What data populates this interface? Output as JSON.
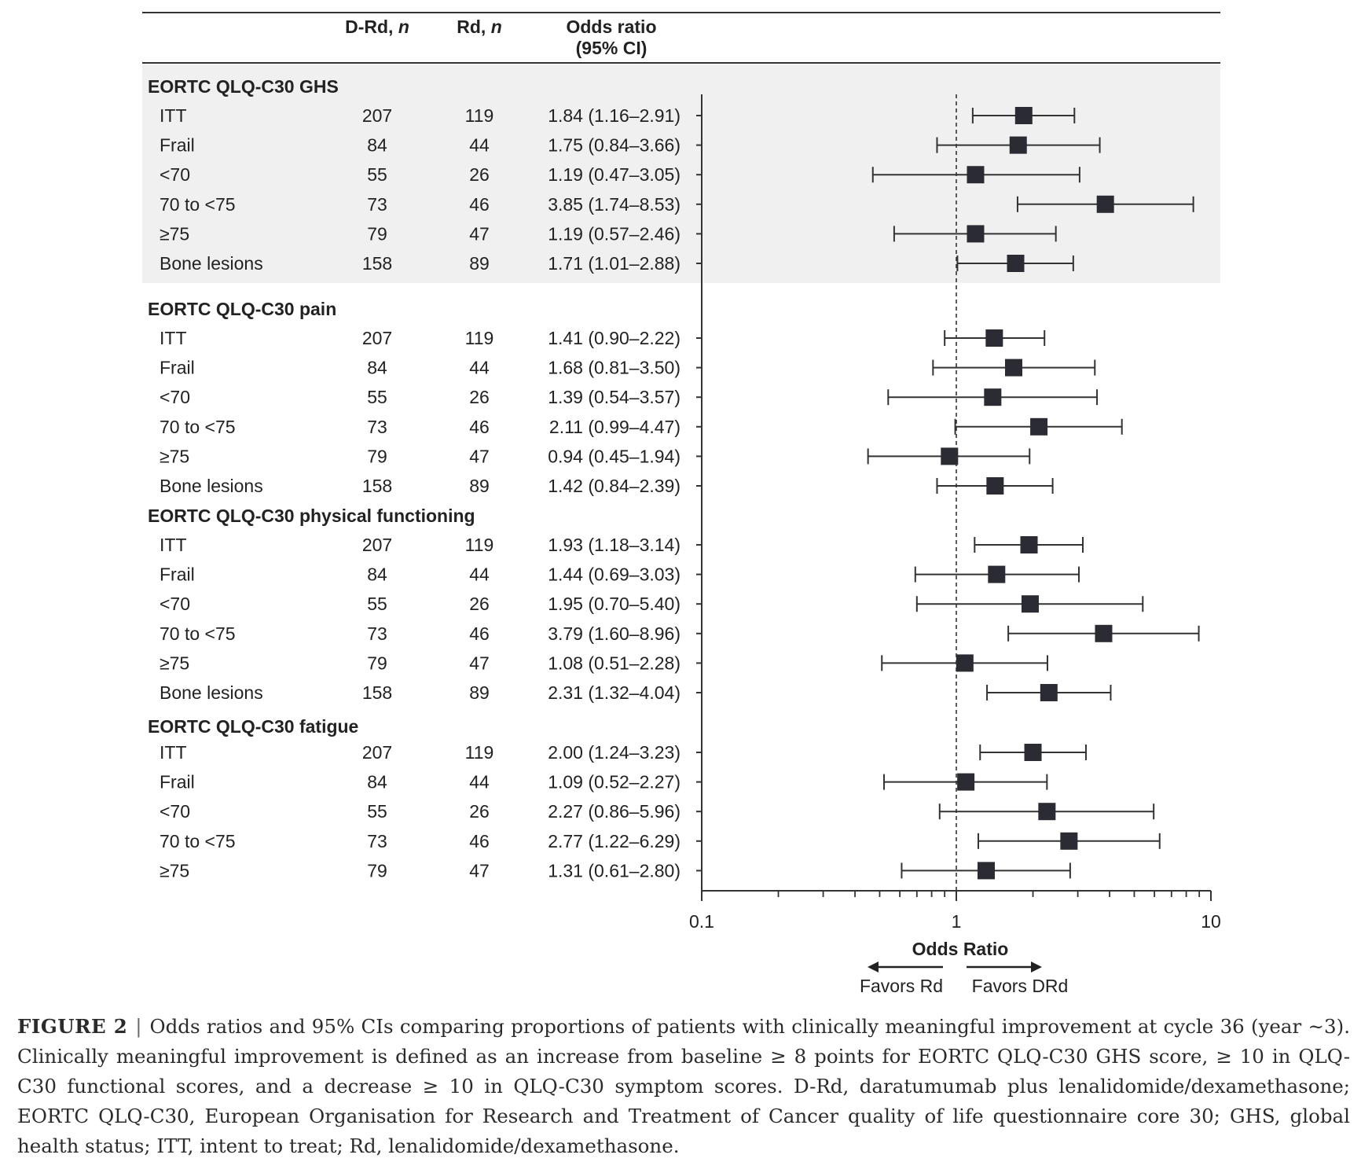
{
  "chart_data": {
    "type": "forest",
    "columns": {
      "drd": "D-Rd, ",
      "rd": "Rd, ",
      "n_symbol": "n",
      "or_line1": "Odds ratio",
      "or_line2": "(95% CI)"
    },
    "x_axis": {
      "label": "Odds Ratio",
      "scale": "log",
      "range": [
        0.1,
        10
      ],
      "tick_labels": [
        "0.1",
        "1",
        "10"
      ],
      "minor_ticks": [
        0.2,
        0.3,
        0.4,
        0.5,
        0.6,
        0.7,
        0.8,
        0.9,
        2,
        3,
        4,
        5,
        6,
        7,
        8,
        9
      ],
      "reference_line": 1
    },
    "favors": {
      "left": "Favors Rd",
      "right": "Favors DRd"
    },
    "groups": [
      {
        "title": "EORTC QLQ-C30 GHS",
        "shaded": true,
        "rows": [
          {
            "label": "ITT",
            "drd": "207",
            "rd": "119",
            "text": "1.84 (1.16–2.91)",
            "or": 1.84,
            "lo": 1.16,
            "hi": 2.91
          },
          {
            "label": "Frail",
            "drd": "84",
            "rd": "44",
            "text": "1.75 (0.84–3.66)",
            "or": 1.75,
            "lo": 0.84,
            "hi": 3.66
          },
          {
            "label": "<70",
            "drd": "55",
            "rd": "26",
            "text": "1.19 (0.47–3.05)",
            "or": 1.19,
            "lo": 0.47,
            "hi": 3.05
          },
          {
            "label": "70 to <75",
            "drd": "73",
            "rd": "46",
            "text": "3.85 (1.74–8.53)",
            "or": 3.85,
            "lo": 1.74,
            "hi": 8.53
          },
          {
            "label": "≥75",
            "drd": "79",
            "rd": "47",
            "text": "1.19 (0.57–2.46)",
            "or": 1.19,
            "lo": 0.57,
            "hi": 2.46
          },
          {
            "label": "Bone lesions",
            "drd": "158",
            "rd": "89",
            "text": "1.71 (1.01–2.88)",
            "or": 1.71,
            "lo": 1.01,
            "hi": 2.88
          }
        ]
      },
      {
        "title": "EORTC QLQ-C30 pain",
        "shaded": false,
        "rows": [
          {
            "label": "ITT",
            "drd": "207",
            "rd": "119",
            "text": "1.41 (0.90–2.22)",
            "or": 1.41,
            "lo": 0.9,
            "hi": 2.22
          },
          {
            "label": "Frail",
            "drd": "84",
            "rd": "44",
            "text": "1.68 (0.81–3.50)",
            "or": 1.68,
            "lo": 0.81,
            "hi": 3.5
          },
          {
            "label": "<70",
            "drd": "55",
            "rd": "26",
            "text": "1.39 (0.54–3.57)",
            "or": 1.39,
            "lo": 0.54,
            "hi": 3.57
          },
          {
            "label": "70 to <75",
            "drd": "73",
            "rd": "46",
            "text": "2.11 (0.99–4.47)",
            "or": 2.11,
            "lo": 0.99,
            "hi": 4.47
          },
          {
            "label": "≥75",
            "drd": "79",
            "rd": "47",
            "text": "0.94 (0.45–1.94)",
            "or": 0.94,
            "lo": 0.45,
            "hi": 1.94
          },
          {
            "label": "Bone lesions",
            "drd": "158",
            "rd": "89",
            "text": "1.42 (0.84–2.39)",
            "or": 1.42,
            "lo": 0.84,
            "hi": 2.39
          }
        ]
      },
      {
        "title": "EORTC QLQ-C30 physical functioning",
        "shaded": false,
        "rows": [
          {
            "label": "ITT",
            "drd": "207",
            "rd": "119",
            "text": "1.93 (1.18–3.14)",
            "or": 1.93,
            "lo": 1.18,
            "hi": 3.14
          },
          {
            "label": "Frail",
            "drd": "84",
            "rd": "44",
            "text": "1.44 (0.69–3.03)",
            "or": 1.44,
            "lo": 0.69,
            "hi": 3.03
          },
          {
            "label": "<70",
            "drd": "55",
            "rd": "26",
            "text": "1.95 (0.70–5.40)",
            "or": 1.95,
            "lo": 0.7,
            "hi": 5.4
          },
          {
            "label": "70 to <75",
            "drd": "73",
            "rd": "46",
            "text": "3.79 (1.60–8.96)",
            "or": 3.79,
            "lo": 1.6,
            "hi": 8.96
          },
          {
            "label": "≥75",
            "drd": "79",
            "rd": "47",
            "text": "1.08 (0.51–2.28)",
            "or": 1.08,
            "lo": 0.51,
            "hi": 2.28
          },
          {
            "label": "Bone lesions",
            "drd": "158",
            "rd": "89",
            "text": "2.31 (1.32–4.04)",
            "or": 2.31,
            "lo": 1.32,
            "hi": 4.04
          }
        ]
      },
      {
        "title": "EORTC QLQ-C30 fatigue",
        "shaded": false,
        "rows": [
          {
            "label": "ITT",
            "drd": "207",
            "rd": "119",
            "text": "2.00 (1.24–3.23)",
            "or": 2.0,
            "lo": 1.24,
            "hi": 3.23
          },
          {
            "label": "Frail",
            "drd": "84",
            "rd": "44",
            "text": "1.09 (0.52–2.27)",
            "or": 1.09,
            "lo": 0.52,
            "hi": 2.27
          },
          {
            "label": "<70",
            "drd": "55",
            "rd": "26",
            "text": "2.27 (0.86–5.96)",
            "or": 2.27,
            "lo": 0.86,
            "hi": 5.96
          },
          {
            "label": "70 to <75",
            "drd": "73",
            "rd": "46",
            "text": "2.77 (1.22–6.29)",
            "or": 2.77,
            "lo": 1.22,
            "hi": 6.29
          },
          {
            "label": "≥75",
            "drd": "79",
            "rd": "47",
            "text": "1.31 (0.61–2.80)",
            "or": 1.31,
            "lo": 0.61,
            "hi": 2.8
          }
        ]
      }
    ]
  },
  "caption": {
    "label": "FIGURE 2",
    "separator": "|",
    "text": "Odds ratios and 95% CIs comparing proportions of patients with clinically meaningful improvement at cycle 36 (year ~3). Clinically meaningful improvement is defined as an increase from baseline ≥ 8 points for EORTC QLQ-C30 GHS score, ≥ 10 in QLQ-C30 functional scores, and a decrease ≥ 10 in QLQ-C30 symptom scores. D-Rd, daratumumab plus lenalidomide/dexamethasone; EORTC QLQ-C30, European Organisation for Research and Treatment of Cancer quality of life questionnaire core 30; GHS, global health status; ITT, intent to treat; Rd, lenalidomide/dexamethasone."
  },
  "colors": {
    "marker": "#2b2b33",
    "line": "#333333",
    "shade": "#f0f0f0",
    "text": "#222222"
  }
}
